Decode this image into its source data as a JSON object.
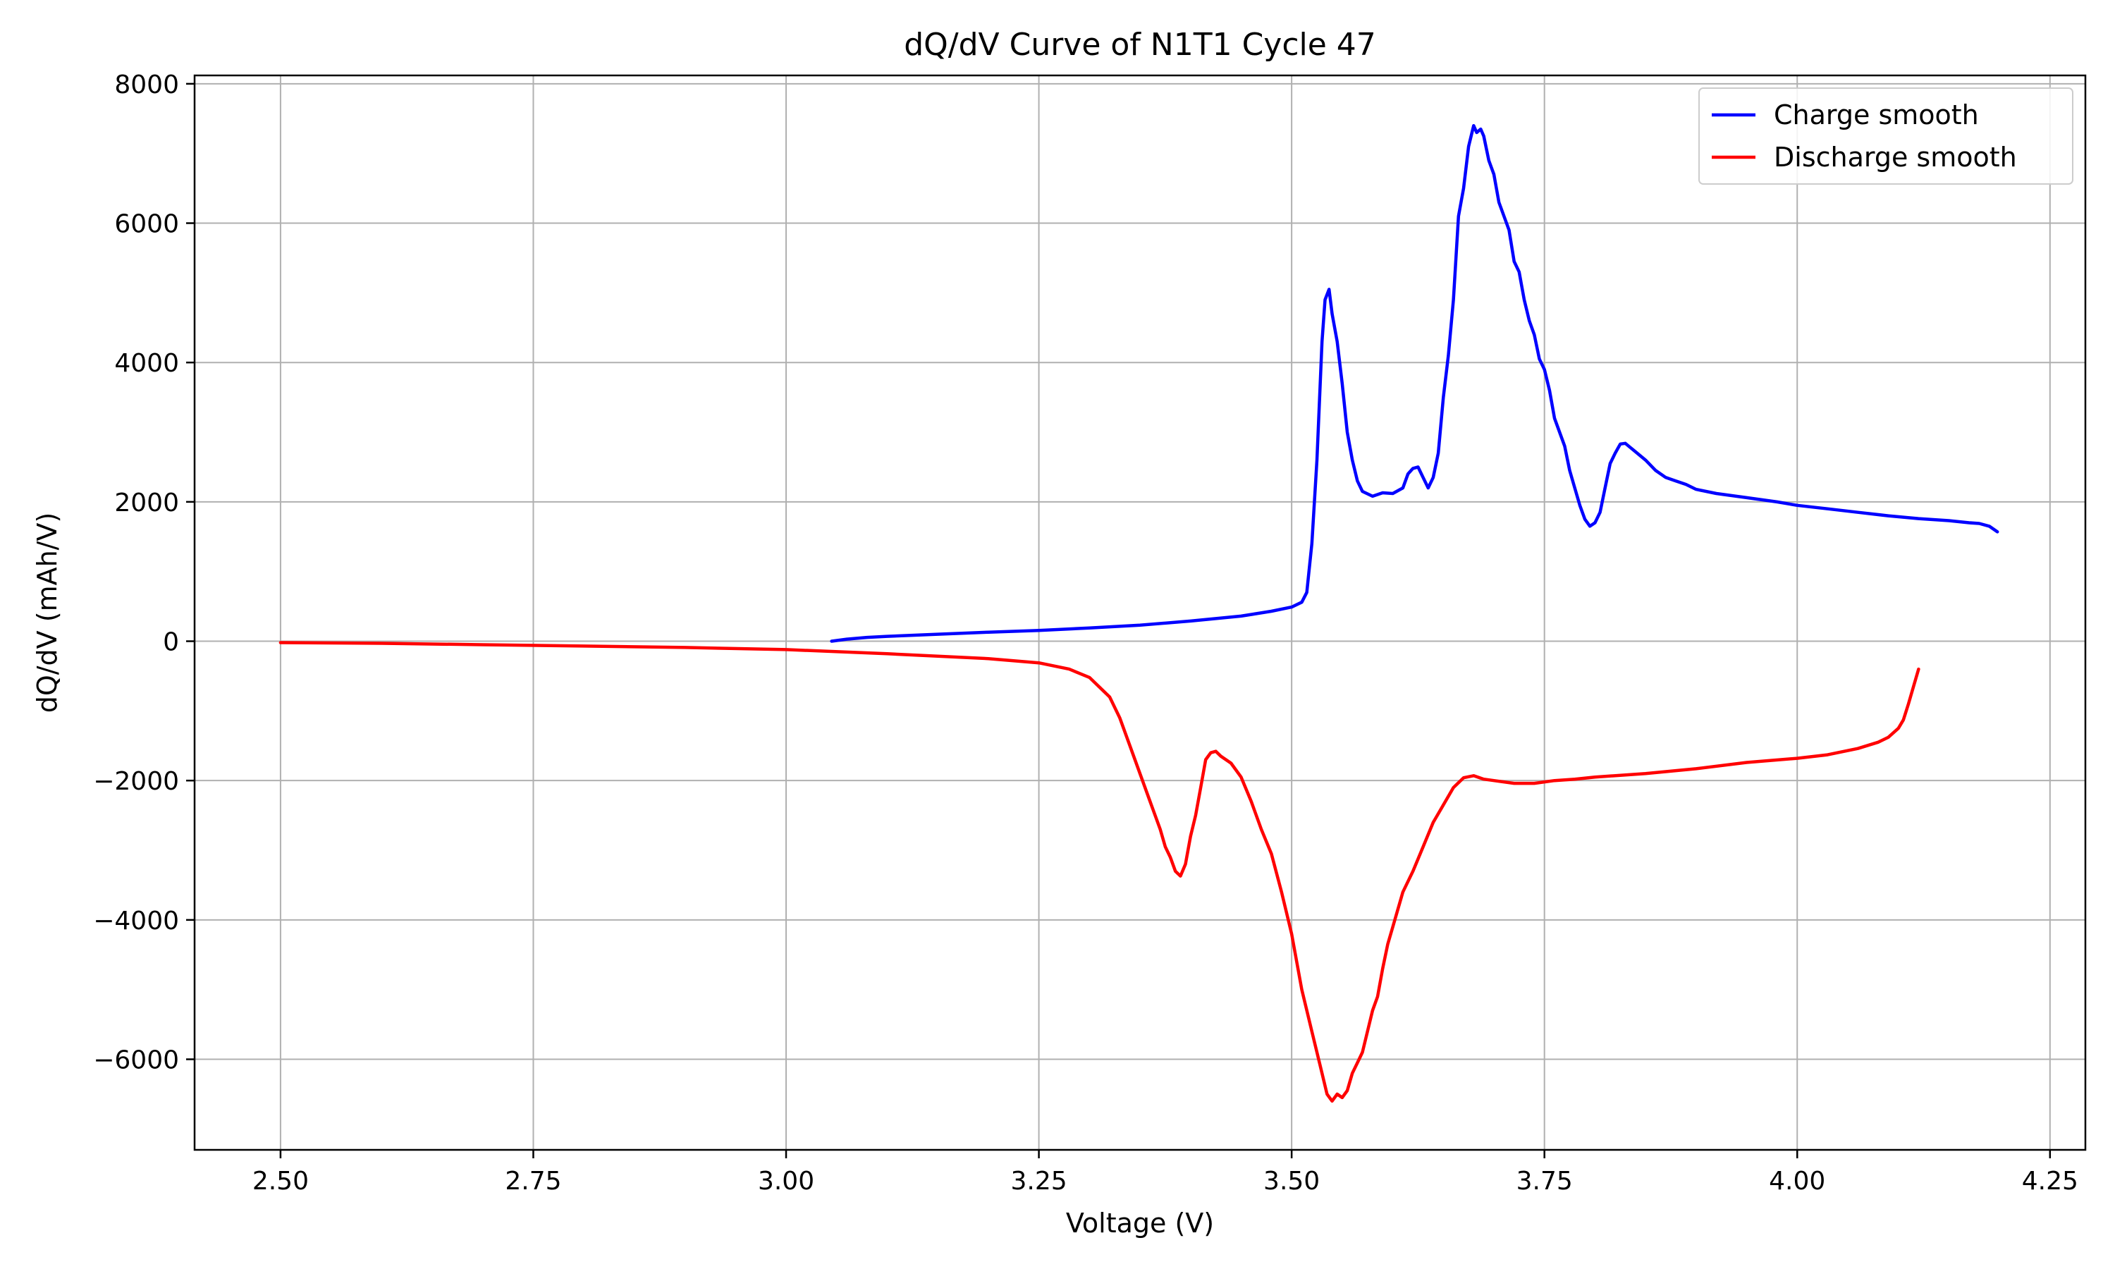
{
  "chart_data": {
    "type": "line",
    "title": "dQ/dV Curve of N1T1 Cycle 47",
    "xlabel": "Voltage (V)",
    "ylabel": "dQ/dV (mAh/V)",
    "xlim": [
      2.415,
      4.285
    ],
    "ylim": [
      -7300,
      8120
    ],
    "x_ticks": [
      2.5,
      2.75,
      3.0,
      3.25,
      3.5,
      3.75,
      4.0,
      4.25
    ],
    "x_tick_labels": [
      "2.50",
      "2.75",
      "3.00",
      "3.25",
      "3.50",
      "3.75",
      "4.00",
      "4.25"
    ],
    "y_ticks": [
      -6000,
      -4000,
      -2000,
      0,
      2000,
      4000,
      6000,
      8000
    ],
    "y_tick_labels": [
      "−6000",
      "−4000",
      "−2000",
      "0",
      "2000",
      "4000",
      "6000",
      "8000"
    ],
    "grid": true,
    "legend_position": "top-right",
    "series": [
      {
        "name": "Charge smooth",
        "color": "#0000ff",
        "points": [
          [
            3.045,
            0
          ],
          [
            3.06,
            30
          ],
          [
            3.08,
            55
          ],
          [
            3.1,
            70
          ],
          [
            3.15,
            100
          ],
          [
            3.2,
            130
          ],
          [
            3.25,
            155
          ],
          [
            3.3,
            190
          ],
          [
            3.35,
            230
          ],
          [
            3.4,
            290
          ],
          [
            3.45,
            360
          ],
          [
            3.48,
            430
          ],
          [
            3.5,
            490
          ],
          [
            3.51,
            560
          ],
          [
            3.515,
            700
          ],
          [
            3.52,
            1400
          ],
          [
            3.525,
            2600
          ],
          [
            3.53,
            4300
          ],
          [
            3.533,
            4900
          ],
          [
            3.537,
            5050
          ],
          [
            3.54,
            4700
          ],
          [
            3.545,
            4300
          ],
          [
            3.55,
            3700
          ],
          [
            3.555,
            3000
          ],
          [
            3.56,
            2600
          ],
          [
            3.565,
            2300
          ],
          [
            3.57,
            2150
          ],
          [
            3.58,
            2080
          ],
          [
            3.59,
            2130
          ],
          [
            3.6,
            2120
          ],
          [
            3.61,
            2200
          ],
          [
            3.615,
            2400
          ],
          [
            3.62,
            2480
          ],
          [
            3.625,
            2500
          ],
          [
            3.63,
            2350
          ],
          [
            3.635,
            2200
          ],
          [
            3.64,
            2350
          ],
          [
            3.645,
            2700
          ],
          [
            3.65,
            3500
          ],
          [
            3.655,
            4100
          ],
          [
            3.66,
            4900
          ],
          [
            3.665,
            6100
          ],
          [
            3.67,
            6500
          ],
          [
            3.675,
            7100
          ],
          [
            3.68,
            7400
          ],
          [
            3.683,
            7300
          ],
          [
            3.687,
            7350
          ],
          [
            3.69,
            7250
          ],
          [
            3.695,
            6900
          ],
          [
            3.7,
            6700
          ],
          [
            3.705,
            6300
          ],
          [
            3.71,
            6100
          ],
          [
            3.715,
            5900
          ],
          [
            3.72,
            5450
          ],
          [
            3.725,
            5300
          ],
          [
            3.73,
            4900
          ],
          [
            3.735,
            4600
          ],
          [
            3.74,
            4400
          ],
          [
            3.745,
            4050
          ],
          [
            3.75,
            3900
          ],
          [
            3.755,
            3600
          ],
          [
            3.76,
            3200
          ],
          [
            3.77,
            2800
          ],
          [
            3.775,
            2450
          ],
          [
            3.78,
            2200
          ],
          [
            3.785,
            1950
          ],
          [
            3.79,
            1750
          ],
          [
            3.795,
            1650
          ],
          [
            3.8,
            1700
          ],
          [
            3.805,
            1850
          ],
          [
            3.81,
            2200
          ],
          [
            3.815,
            2550
          ],
          [
            3.82,
            2700
          ],
          [
            3.825,
            2830
          ],
          [
            3.83,
            2840
          ],
          [
            3.835,
            2780
          ],
          [
            3.84,
            2720
          ],
          [
            3.85,
            2600
          ],
          [
            3.86,
            2450
          ],
          [
            3.87,
            2350
          ],
          [
            3.88,
            2300
          ],
          [
            3.89,
            2250
          ],
          [
            3.9,
            2180
          ],
          [
            3.92,
            2120
          ],
          [
            3.95,
            2060
          ],
          [
            3.98,
            2000
          ],
          [
            4.0,
            1950
          ],
          [
            4.03,
            1900
          ],
          [
            4.06,
            1850
          ],
          [
            4.09,
            1800
          ],
          [
            4.12,
            1760
          ],
          [
            4.15,
            1730
          ],
          [
            4.17,
            1700
          ],
          [
            4.18,
            1690
          ],
          [
            4.19,
            1650
          ],
          [
            4.198,
            1570
          ]
        ]
      },
      {
        "name": "Discharge smooth",
        "color": "#ff0000",
        "points": [
          [
            2.5,
            -20
          ],
          [
            2.6,
            -30
          ],
          [
            2.7,
            -50
          ],
          [
            2.8,
            -70
          ],
          [
            2.9,
            -90
          ],
          [
            3.0,
            -120
          ],
          [
            3.1,
            -180
          ],
          [
            3.2,
            -250
          ],
          [
            3.25,
            -310
          ],
          [
            3.28,
            -400
          ],
          [
            3.3,
            -520
          ],
          [
            3.32,
            -800
          ],
          [
            3.33,
            -1100
          ],
          [
            3.34,
            -1500
          ],
          [
            3.35,
            -1900
          ],
          [
            3.36,
            -2300
          ],
          [
            3.37,
            -2700
          ],
          [
            3.375,
            -2950
          ],
          [
            3.38,
            -3100
          ],
          [
            3.385,
            -3300
          ],
          [
            3.39,
            -3370
          ],
          [
            3.395,
            -3200
          ],
          [
            3.4,
            -2800
          ],
          [
            3.405,
            -2500
          ],
          [
            3.41,
            -2100
          ],
          [
            3.415,
            -1700
          ],
          [
            3.42,
            -1600
          ],
          [
            3.425,
            -1580
          ],
          [
            3.43,
            -1650
          ],
          [
            3.44,
            -1750
          ],
          [
            3.45,
            -1950
          ],
          [
            3.46,
            -2300
          ],
          [
            3.47,
            -2700
          ],
          [
            3.48,
            -3050
          ],
          [
            3.49,
            -3600
          ],
          [
            3.5,
            -4200
          ],
          [
            3.51,
            -5000
          ],
          [
            3.52,
            -5600
          ],
          [
            3.53,
            -6200
          ],
          [
            3.535,
            -6500
          ],
          [
            3.54,
            -6600
          ],
          [
            3.545,
            -6500
          ],
          [
            3.55,
            -6550
          ],
          [
            3.555,
            -6450
          ],
          [
            3.56,
            -6200
          ],
          [
            3.565,
            -6050
          ],
          [
            3.57,
            -5900
          ],
          [
            3.575,
            -5600
          ],
          [
            3.58,
            -5300
          ],
          [
            3.585,
            -5100
          ],
          [
            3.59,
            -4700
          ],
          [
            3.595,
            -4350
          ],
          [
            3.6,
            -4100
          ],
          [
            3.61,
            -3600
          ],
          [
            3.62,
            -3300
          ],
          [
            3.63,
            -2950
          ],
          [
            3.64,
            -2600
          ],
          [
            3.65,
            -2350
          ],
          [
            3.66,
            -2100
          ],
          [
            3.67,
            -1960
          ],
          [
            3.68,
            -1930
          ],
          [
            3.69,
            -1980
          ],
          [
            3.7,
            -2000
          ],
          [
            3.72,
            -2040
          ],
          [
            3.74,
            -2040
          ],
          [
            3.76,
            -2000
          ],
          [
            3.78,
            -1980
          ],
          [
            3.8,
            -1950
          ],
          [
            3.85,
            -1900
          ],
          [
            3.9,
            -1830
          ],
          [
            3.95,
            -1740
          ],
          [
            4.0,
            -1680
          ],
          [
            4.03,
            -1630
          ],
          [
            4.06,
            -1540
          ],
          [
            4.08,
            -1450
          ],
          [
            4.09,
            -1380
          ],
          [
            4.1,
            -1250
          ],
          [
            4.105,
            -1130
          ],
          [
            4.11,
            -900
          ],
          [
            4.115,
            -650
          ],
          [
            4.12,
            -400
          ]
        ]
      }
    ]
  }
}
